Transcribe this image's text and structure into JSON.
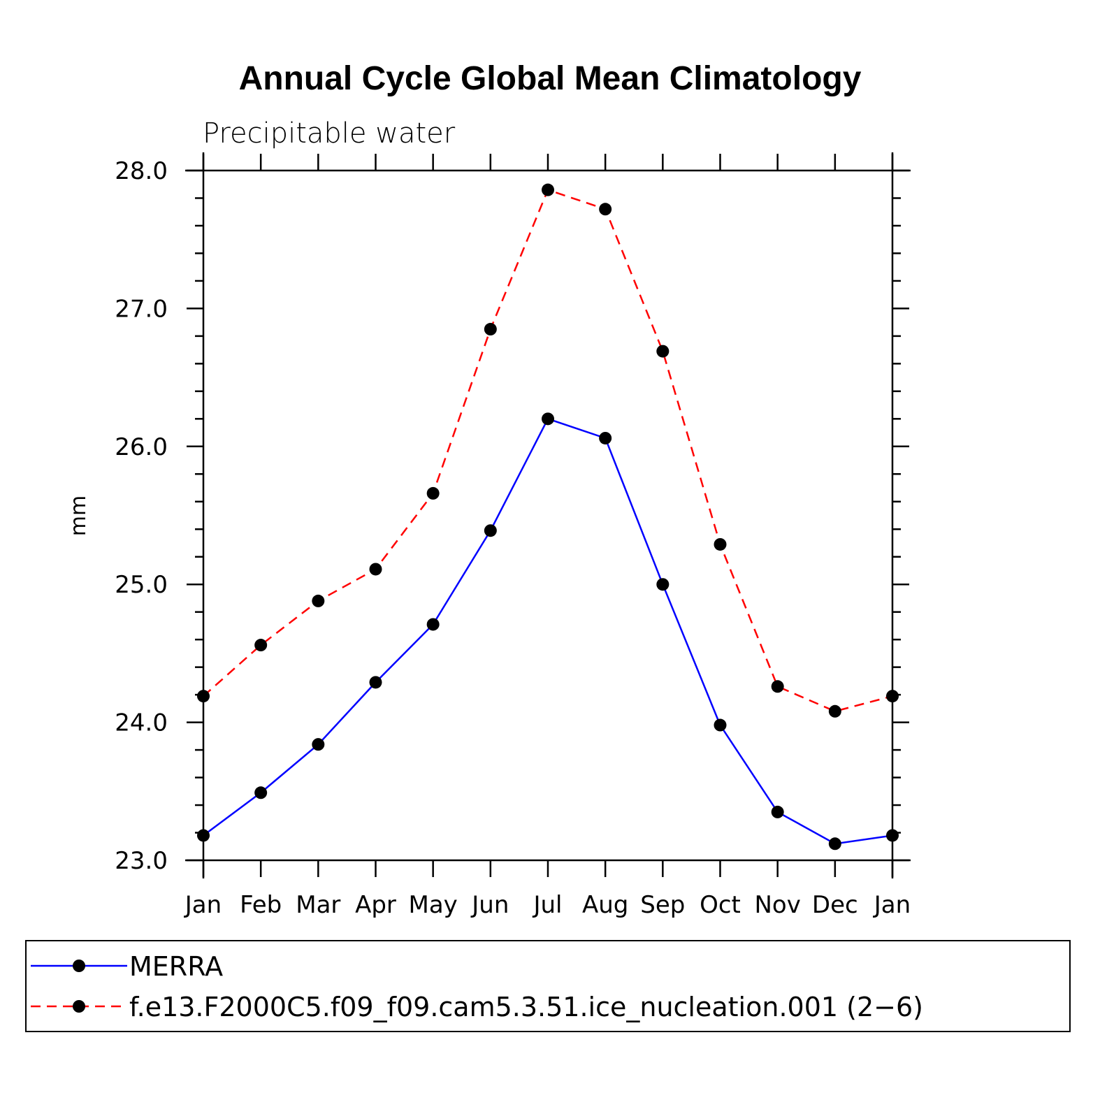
{
  "chart_data": {
    "type": "line",
    "title": "Annual Cycle Global Mean Climatology",
    "subtitle": "Precipitable water",
    "xlabel": "",
    "ylabel": "mm",
    "categories": [
      "Jan",
      "Feb",
      "Mar",
      "Apr",
      "May",
      "Jun",
      "Jul",
      "Aug",
      "Sep",
      "Oct",
      "Nov",
      "Dec",
      "Jan"
    ],
    "ylim": [
      23.0,
      28.0
    ],
    "yticks": [
      23.0,
      24.0,
      25.0,
      26.0,
      27.0,
      28.0
    ],
    "ytick_labels": [
      "23.0",
      "24.0",
      "25.0",
      "26.0",
      "27.0",
      "28.0"
    ],
    "grid": false,
    "legend_position": "bottom",
    "series": [
      {
        "name": "MERRA",
        "color": "#0000ff",
        "style": "solid",
        "values": [
          23.18,
          23.49,
          23.84,
          24.29,
          24.71,
          25.39,
          26.2,
          26.06,
          25.0,
          23.98,
          23.35,
          23.12,
          23.18
        ]
      },
      {
        "name": "f.e13.F2000C5.f09_f09.cam5.3.51.ice_nucleation.001 (2−6)",
        "color": "#ff0000",
        "style": "dashed",
        "values": [
          24.19,
          24.56,
          24.88,
          25.11,
          25.66,
          26.85,
          27.86,
          27.72,
          26.69,
          25.29,
          24.26,
          24.08,
          24.19
        ]
      }
    ]
  }
}
